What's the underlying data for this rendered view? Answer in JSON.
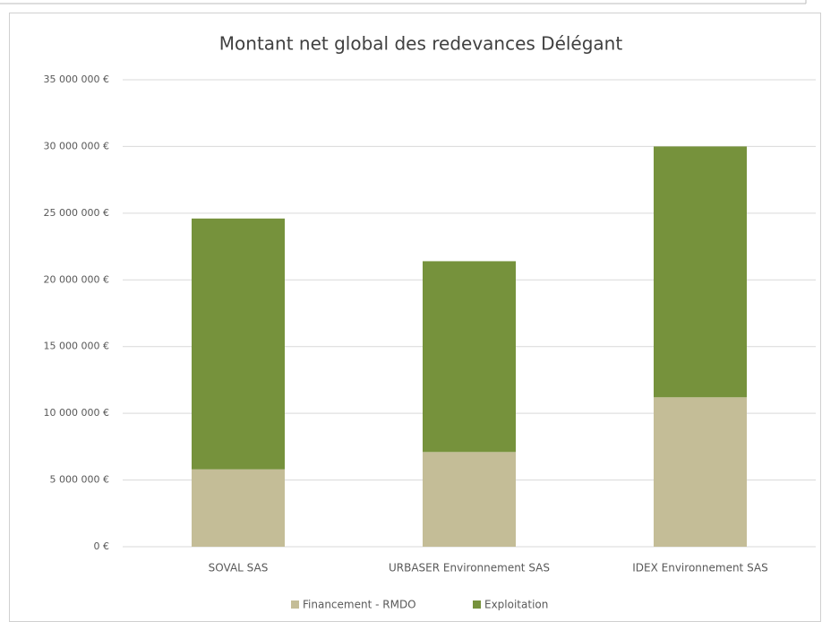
{
  "chart_data": {
    "type": "stacked_bar",
    "title": "Montant net global des redevances Délégant",
    "categories": [
      "SOVAL SAS",
      "URBASER Environnement SAS",
      "IDEX Environnement SAS"
    ],
    "series": [
      {
        "name": "Financement - RMDO",
        "color": "#c4bd97",
        "values": [
          5800000,
          7100000,
          11200000
        ]
      },
      {
        "name": "Exploitation",
        "color": "#76923c",
        "values": [
          18800000,
          14300000,
          18800000
        ]
      }
    ],
    "ylim": [
      0,
      35000000
    ],
    "yticks": [
      {
        "value": 0,
        "label": "0 €"
      },
      {
        "value": 5000000,
        "label": "5 000 000 €"
      },
      {
        "value": 10000000,
        "label": "10 000 000 €"
      },
      {
        "value": 15000000,
        "label": "15 000 000 €"
      },
      {
        "value": 20000000,
        "label": "20 000 000 €"
      },
      {
        "value": 25000000,
        "label": "25 000 000 €"
      },
      {
        "value": 30000000,
        "label": "30 000 000 €"
      },
      {
        "value": 35000000,
        "label": "35 000 000 €"
      }
    ],
    "grid": true,
    "legend": "bottom"
  }
}
